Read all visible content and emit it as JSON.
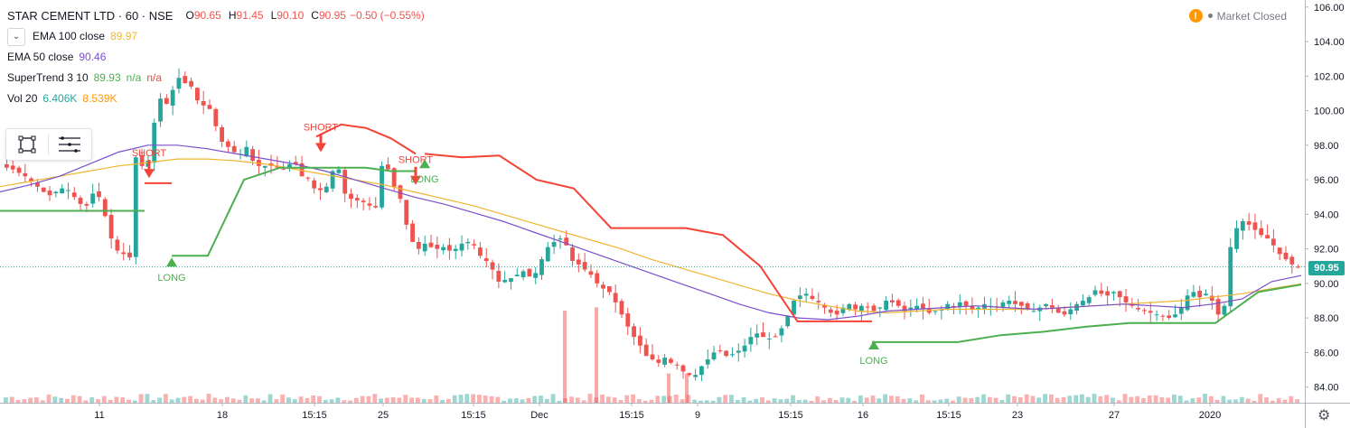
{
  "header": {
    "title": "STAR CEMENT LTD · 60 · NSE",
    "ohlc": [
      {
        "label": "O",
        "value": "90.65"
      },
      {
        "label": "H",
        "value": "91.45"
      },
      {
        "label": "L",
        "value": "90.10"
      },
      {
        "label": "C",
        "value": "90.95"
      }
    ],
    "change": "−0.50 (−0.55%)"
  },
  "indicators": [
    {
      "name": "EMA 100 close",
      "values": [
        "89.97"
      ],
      "colors": [
        "#f0b52f"
      ]
    },
    {
      "name": "EMA 50 close",
      "values": [
        "90.46"
      ],
      "colors": [
        "#7b4fc9"
      ]
    },
    {
      "name": "SuperTrend 3 10",
      "values": [
        "89.93",
        "n/a",
        "n/a"
      ],
      "colors": [
        "#4caf50",
        "#4caf50",
        "#f44336"
      ]
    },
    {
      "name": "Vol 20",
      "values": [
        "6.406K",
        "8.539K"
      ],
      "colors": [
        "#26a69a",
        "#ff9800"
      ]
    }
  ],
  "market_status": "Market Closed",
  "last_price_label": "90.95",
  "icons": {
    "collapse": "chevron-down-icon",
    "rect_tool": "rectangle-icon",
    "list_tool": "list-icon",
    "warning": "warning-icon",
    "settings": "gear-icon"
  },
  "colors": {
    "up": "#26a69a",
    "down": "#ef5350",
    "ema100": "#f0b52f",
    "ema50": "#7b4fc9",
    "st_up": "#4caf50",
    "st_down": "#f44336"
  },
  "chart_data": {
    "type": "candlestick",
    "y_axis": {
      "ticks": [
        "84.00",
        "86.00",
        "88.00",
        "90.00",
        "92.00",
        "94.00",
        "96.00",
        "98.00",
        "100.00",
        "102.00",
        "104.00",
        "106.00"
      ],
      "min": 83.3,
      "max": 106.2
    },
    "x_axis": {
      "ticks": [
        "11",
        "18",
        "15:15",
        "25",
        "15:15",
        "Dec",
        "15:15",
        "9",
        "15:15",
        "16",
        "15:15",
        "23",
        "27",
        "2020"
      ]
    },
    "close_path": [
      96.7,
      96.6,
      96.4,
      96.2,
      95.9,
      95.6,
      95.3,
      95.1,
      95.3,
      95.5,
      95.4,
      95.0,
      94.6,
      94.5,
      95.2,
      95.0,
      93.9,
      92.6,
      91.9,
      91.7,
      91.5,
      97.3,
      96.8,
      97.1,
      99.3,
      100.7,
      100.4,
      101.2,
      101.9,
      101.6,
      101.4,
      100.6,
      100.3,
      100.1,
      99.1,
      98.2,
      97.9,
      97.6,
      97.5,
      97.9,
      97.1,
      96.8,
      96.8,
      96.8,
      96.7,
      96.6,
      96.9,
      96.9,
      96.2,
      96.1,
      95.5,
      95.4,
      95.6,
      96.5,
      96.6,
      95.2,
      94.9,
      94.8,
      94.7,
      94.5,
      94.4,
      96.8,
      96.6,
      95.6,
      94.9,
      93.4,
      92.4,
      92.0,
      92.3,
      92.1,
      92.0,
      92.1,
      91.9,
      92.0,
      92.3,
      92.4,
      92.2,
      91.6,
      91.3,
      90.8,
      90.1,
      90.2,
      90.3,
      90.5,
      90.7,
      90.4,
      90.6,
      91.4,
      92.1,
      92.4,
      92.6,
      92.2,
      91.3,
      91.1,
      90.8,
      90.5,
      90.0,
      89.7,
      89.5,
      88.9,
      88.2,
      87.5,
      86.9,
      86.4,
      85.8,
      85.6,
      85.4,
      85.7,
      85.4,
      85.3,
      84.9,
      84.7,
      84.7,
      85.2,
      85.6,
      86.0,
      86.1,
      85.8,
      85.9,
      86.1,
      86.4,
      86.9,
      87.1,
      86.9,
      86.8,
      86.9,
      87.4,
      88.1,
      89.0,
      89.3,
      89.4,
      89.1,
      88.9,
      88.6,
      88.3,
      88.2,
      88.6,
      88.8,
      88.5,
      88.7,
      88.6,
      88.4,
      88.6,
      89.0,
      88.9,
      88.7,
      88.4,
      88.6,
      88.7,
      88.5,
      88.3,
      88.4,
      88.5,
      88.8,
      88.6,
      88.9,
      88.7,
      88.5,
      88.6,
      88.8,
      88.7,
      88.6,
      88.9,
      89.0,
      88.8,
      88.7,
      88.5,
      88.4,
      88.6,
      88.8,
      88.6,
      88.3,
      88.2,
      88.5,
      88.8,
      89.0,
      89.2,
      89.6,
      89.4,
      89.3,
      89.5,
      89.2,
      88.9,
      88.7,
      88.5,
      88.4,
      88.3,
      88.2,
      88.1,
      88.0,
      88.2,
      88.6,
      89.3,
      89.5,
      89.2,
      89.4,
      89.0,
      88.2,
      88.7,
      92.1,
      93.2,
      93.6,
      93.4,
      93.1,
      92.8,
      92.6,
      92.2,
      91.7,
      91.4,
      91.1,
      90.95
    ],
    "ema100": [
      95.6,
      95.9,
      96.2,
      96.5,
      96.8,
      97.0,
      97.2,
      97.2,
      97.1,
      96.9,
      96.6,
      96.3,
      96.0,
      95.7,
      95.3,
      94.9,
      94.5,
      94.0,
      93.5,
      93.0,
      92.5,
      92.0,
      91.4,
      90.9,
      90.4,
      89.9,
      89.4,
      89.0,
      88.7,
      88.4,
      88.3,
      88.4,
      88.5,
      88.5,
      88.5,
      88.5,
      88.6,
      88.7,
      88.8,
      88.9,
      89.0,
      89.2,
      89.4,
      89.7,
      89.97
    ],
    "ema50": [
      95.3,
      95.7,
      96.2,
      96.9,
      97.6,
      98.0,
      98.0,
      97.8,
      97.5,
      97.2,
      96.9,
      96.5,
      96.0,
      95.5,
      95.0,
      94.6,
      94.1,
      93.6,
      93.0,
      92.4,
      91.8,
      91.2,
      90.6,
      90.0,
      89.4,
      88.8,
      88.3,
      88.0,
      87.9,
      88.1,
      88.4,
      88.5,
      88.6,
      88.7,
      88.6,
      88.5,
      88.6,
      88.7,
      88.8,
      88.7,
      88.6,
      88.8,
      89.1,
      90.1,
      90.46
    ],
    "supertrend_up": [
      [
        94.2,
        94.2,
        94.2,
        94.2,
        94.2
      ],
      [
        91.6,
        91.6,
        96.0,
        96.7,
        96.7
      ],
      [
        96.7,
        96.7,
        96.7,
        96.5,
        96.5
      ],
      [
        86.6,
        86.6,
        86.6,
        87.0,
        87.2,
        87.5,
        87.7,
        87.7,
        87.7,
        89.5,
        89.93
      ]
    ],
    "supertrend_down": [
      [
        95.8,
        95.8
      ],
      [
        98.5,
        99.2,
        99.0,
        98.4,
        97.5
      ],
      [
        97.5,
        97.3,
        97.4,
        96.0,
        95.5,
        93.2,
        93.2,
        93.2,
        92.8,
        91.0,
        87.8,
        87.8,
        87.8
      ]
    ],
    "volume_spikes": [
      0.85,
      0.88,
      0.27,
      0.27
    ],
    "signals": [
      {
        "label": "SHORT",
        "type": "short"
      },
      {
        "label": "LONG",
        "type": "long"
      },
      {
        "label": "SHORT",
        "type": "short"
      },
      {
        "label": "SHORT",
        "type": "short"
      },
      {
        "label": "LONG",
        "type": "long"
      },
      {
        "label": "LONG",
        "type": "long"
      }
    ]
  }
}
